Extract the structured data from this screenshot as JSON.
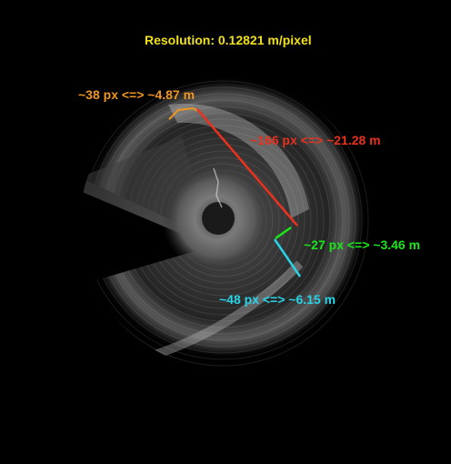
{
  "resolution": {
    "text": "Resolution: 0.12821 m/pixel",
    "color": "#f0e020"
  },
  "measurements": [
    {
      "id": "orange",
      "pixels": 38,
      "meters": 4.87,
      "text": "~38 px <=> ~4.87 m",
      "color": "#f0961e"
    },
    {
      "id": "red",
      "pixels": 166,
      "meters": 21.28,
      "text": "~166 px <=> ~21.28 m",
      "color": "#e8321e"
    },
    {
      "id": "green",
      "pixels": 27,
      "meters": 3.46,
      "text": "~27 px <=> ~3.46 m",
      "color": "#19e619"
    },
    {
      "id": "cyan",
      "pixels": 48,
      "meters": 6.15,
      "text": "~48 px <=> ~6.15 m",
      "color": "#2ad2e6"
    }
  ]
}
